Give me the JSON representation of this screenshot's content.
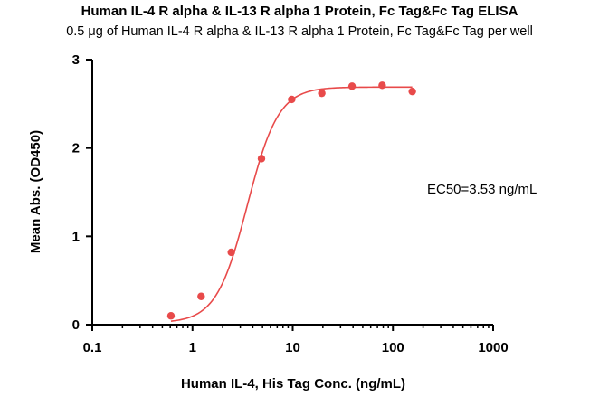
{
  "chart_data": {
    "type": "scatter",
    "title": "Human IL-4 R alpha & IL-13 R alpha 1 Protein, Fc Tag&Fc Tag ELISA",
    "subtitle": "0.5 μg of Human IL-4 R alpha & IL-13 R alpha 1 Protein, Fc Tag&Fc Tag per well",
    "xlabel": "Human  IL-4, His Tag Conc. (ng/mL)",
    "ylabel": "Mean Abs. (OD450)",
    "xscale": "log",
    "xlim": [
      0.1,
      1000
    ],
    "ylim": [
      0,
      3
    ],
    "xticks": [
      0.1,
      1,
      10,
      100,
      1000
    ],
    "xtick_labels": [
      "0.1",
      "1",
      "10",
      "100",
      "1000"
    ],
    "yticks": [
      0,
      1,
      2,
      3
    ],
    "ytick_labels": [
      "0",
      "1",
      "2",
      "3"
    ],
    "color": "#e84a4a",
    "series": [
      {
        "x": [
          0.61,
          1.22,
          2.44,
          4.88,
          9.77,
          19.5,
          39.1,
          78.1,
          156
        ],
        "y": [
          0.1,
          0.32,
          0.82,
          1.88,
          2.55,
          2.62,
          2.7,
          2.71,
          2.64
        ]
      }
    ],
    "fit": {
      "model": "4PL",
      "bottom": 0.02,
      "top": 2.69,
      "ec50": 3.53,
      "hill": 2.8
    },
    "annotations": [
      "EC50=3.53 ng/mL"
    ]
  }
}
